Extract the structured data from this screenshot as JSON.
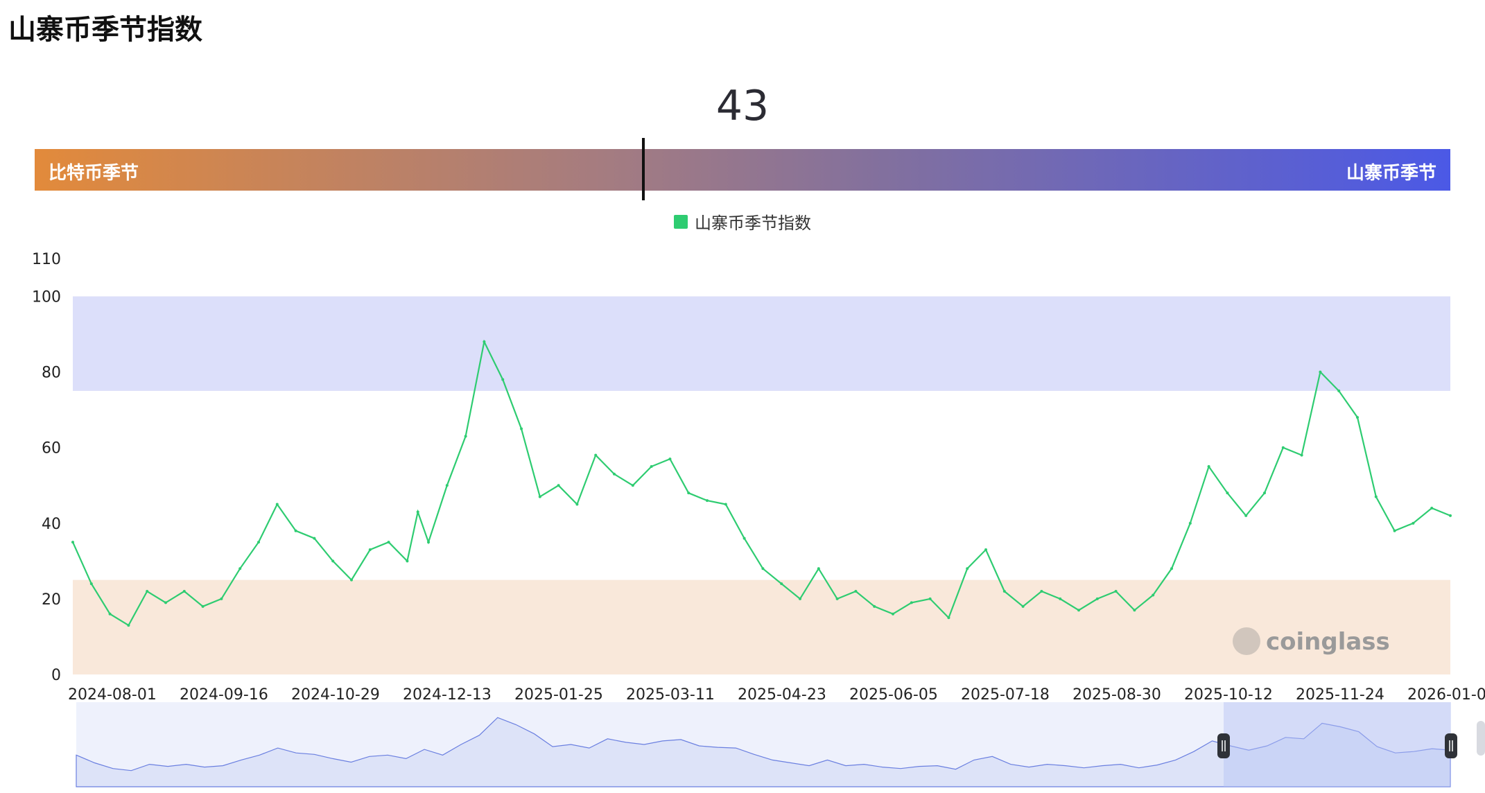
{
  "page": {
    "title": "山寨币季节指数"
  },
  "gauge": {
    "value": "43",
    "left_label": "比特币季节",
    "right_label": "山寨币季节",
    "value_numeric": 43,
    "range": [
      0,
      100
    ]
  },
  "legend": {
    "label": "山寨币季节指数",
    "color": "#2ecc71"
  },
  "watermark": {
    "text": "coinglass"
  },
  "chart_data": {
    "type": "line",
    "title": "",
    "xlabel": "",
    "ylabel": "",
    "ylim": [
      0,
      110
    ],
    "yticks": [
      0,
      20,
      40,
      60,
      80,
      100,
      110
    ],
    "grid": false,
    "legend_position": "top-center",
    "bands": [
      {
        "name": "altcoin-season-zone",
        "from": 75,
        "to": 100,
        "color": "#dcdffa"
      },
      {
        "name": "bitcoin-season-zone",
        "from": 0,
        "to": 25,
        "color": "#f9e8da"
      }
    ],
    "x_tick_labels": [
      "2024-08-01",
      "2024-09-16",
      "2024-10-29",
      "2024-12-13",
      "2025-01-25",
      "2025-03-11",
      "2025-04-23",
      "2025-06-05",
      "2025-07-18",
      "2025-08-30",
      "2025-10-12",
      "2025-11-24",
      "2026-01-0"
    ],
    "series": [
      {
        "name": "山寨币季节指数",
        "color": "#2ecc71",
        "x": [
          "2024-08-01",
          "2024-08-08",
          "2024-08-15",
          "2024-08-22",
          "2024-08-29",
          "2024-09-05",
          "2024-09-12",
          "2024-09-19",
          "2024-09-26",
          "2024-10-03",
          "2024-10-10",
          "2024-10-17",
          "2024-10-24",
          "2024-10-31",
          "2024-11-07",
          "2024-11-14",
          "2024-11-21",
          "2024-11-28",
          "2024-12-05",
          "2024-12-09",
          "2024-12-13",
          "2024-12-20",
          "2024-12-27",
          "2025-01-03",
          "2025-01-10",
          "2025-01-17",
          "2025-01-24",
          "2025-01-31",
          "2025-02-07",
          "2025-02-14",
          "2025-02-21",
          "2025-02-28",
          "2025-03-07",
          "2025-03-14",
          "2025-03-21",
          "2025-03-28",
          "2025-04-04",
          "2025-04-11",
          "2025-04-18",
          "2025-04-25",
          "2025-05-02",
          "2025-05-09",
          "2025-05-16",
          "2025-05-23",
          "2025-05-30",
          "2025-06-06",
          "2025-06-13",
          "2025-06-20",
          "2025-06-27",
          "2025-07-04",
          "2025-07-11",
          "2025-07-18",
          "2025-07-25",
          "2025-08-01",
          "2025-08-08",
          "2025-08-15",
          "2025-08-22",
          "2025-08-29",
          "2025-09-05",
          "2025-09-12",
          "2025-09-19",
          "2025-09-26",
          "2025-10-03",
          "2025-10-10",
          "2025-10-17",
          "2025-10-24",
          "2025-10-31",
          "2025-11-07",
          "2025-11-14",
          "2025-11-21",
          "2025-11-28",
          "2025-12-05",
          "2025-12-12",
          "2025-12-19",
          "2025-12-26",
          "2026-01-02"
        ],
        "values": [
          35,
          24,
          16,
          13,
          22,
          19,
          22,
          18,
          20,
          28,
          35,
          45,
          38,
          36,
          30,
          25,
          33,
          35,
          30,
          43,
          35,
          50,
          63,
          88,
          78,
          65,
          47,
          50,
          45,
          58,
          53,
          50,
          55,
          57,
          48,
          46,
          45,
          36,
          28,
          24,
          20,
          28,
          20,
          22,
          18,
          16,
          19,
          20,
          15,
          28,
          33,
          22,
          18,
          22,
          20,
          17,
          20,
          22,
          17,
          21,
          28,
          40,
          55,
          48,
          42,
          48,
          60,
          58,
          80,
          75,
          68,
          47,
          38,
          40,
          44,
          42
        ]
      }
    ]
  }
}
